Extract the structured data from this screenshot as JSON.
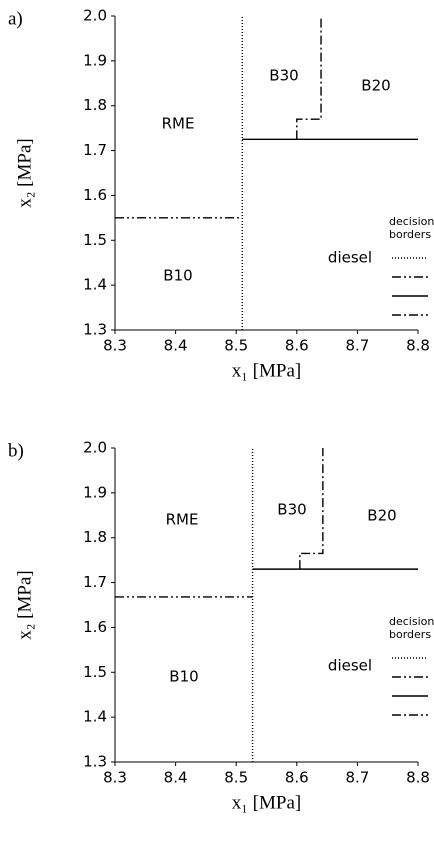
{
  "chart_data": [
    {
      "type": "line",
      "panel_label": "a)",
      "xlabel": "x₁ [MPa]",
      "ylabel": "x₂ [MPa]",
      "xlim": [
        8.3,
        8.8
      ],
      "xticks": [
        8.3,
        8.4,
        8.5,
        8.6,
        8.7,
        8.8
      ],
      "ylim": [
        1.3,
        2.0
      ],
      "yticks": [
        1.3,
        1.4,
        1.5,
        1.6,
        1.7,
        1.8,
        1.9,
        {
          "value": 2.0,
          "label": "2.0"
        }
      ],
      "annotations": [
        "RME",
        "B30",
        "B20",
        "diesel",
        "B10"
      ],
      "legend_title": [
        "decision",
        "borders"
      ],
      "series": [
        {
          "color": "#000000",
          "dash": "dotted",
          "x": [
            8.51,
            8.51
          ],
          "values": [
            1.3,
            2.0
          ]
        },
        {
          "color": "#000000",
          "dash": "dash-dot-dot",
          "x": [
            8.3,
            8.51
          ],
          "values": [
            1.55,
            1.55
          ]
        },
        {
          "color": "#000000",
          "dash": "solid",
          "x": [
            8.51,
            8.8
          ],
          "values": [
            1.725,
            1.725
          ]
        },
        {
          "color": "#000000",
          "dash": "dash-dot",
          "x": [
            8.6,
            8.6,
            8.64,
            8.64
          ],
          "values": [
            1.725,
            1.77,
            1.77,
            2.0
          ]
        }
      ]
    },
    {
      "type": "line",
      "panel_label": "b)",
      "xlabel": "x₁ [MPa]",
      "ylabel": "x₂ [MPa]",
      "xlim": [
        8.3,
        8.8
      ],
      "xticks": [
        8.3,
        8.4,
        8.5,
        8.6,
        8.7,
        8.8
      ],
      "ylim": [
        1.3,
        2.0
      ],
      "yticks": [
        1.3,
        1.4,
        1.5,
        1.6,
        1.7,
        1.8,
        1.9,
        {
          "value": 2.0,
          "label": "2.0"
        }
      ],
      "annotations": [
        "RME",
        "B30",
        "B20",
        "diesel",
        "B10"
      ],
      "legend_title": [
        "decision",
        "borders"
      ],
      "series": [
        {
          "color": "#000000",
          "dash": "dotted",
          "x": [
            8.527,
            8.527
          ],
          "values": [
            1.3,
            2.0
          ]
        },
        {
          "color": "#000000",
          "dash": "dash-dot-dot",
          "x": [
            8.3,
            8.527
          ],
          "values": [
            1.668,
            1.668
          ]
        },
        {
          "color": "#000000",
          "dash": "solid",
          "x": [
            8.527,
            8.8
          ],
          "values": [
            1.73,
            1.73
          ]
        },
        {
          "color": "#000000",
          "dash": "dash-dot",
          "x": [
            8.605,
            8.605,
            8.643,
            8.643
          ],
          "values": [
            1.73,
            1.765,
            1.765,
            2.0
          ]
        }
      ]
    }
  ]
}
